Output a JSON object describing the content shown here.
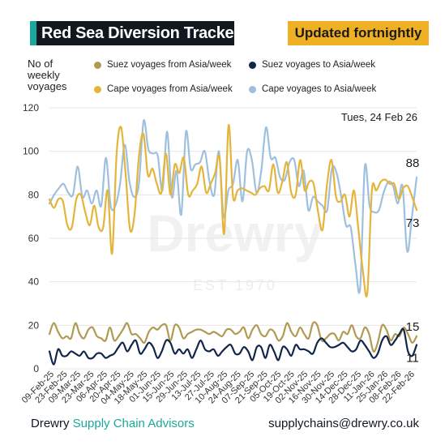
{
  "header": {
    "title": "Red Sea Diversion Tracker",
    "updated": "Updated fortnightly"
  },
  "date_label": "Tues, 24 Feb 26",
  "watermark": {
    "brand": "Drewry",
    "est": "EST 1970"
  },
  "footer": {
    "company": "Drewry",
    "division": "Supply Chain Advisors",
    "email": "supplychains@drewry.co.uk"
  },
  "colors": {
    "suez_from_asia": "#b09a52",
    "suez_to_asia": "#12254a",
    "cape_from_asia": "#e5b43a",
    "cape_to_asia": "#9ec0de",
    "title_bg": "#111820",
    "accent": "#1aa89c",
    "updated_bg": "#f0b024"
  },
  "chart_data": {
    "type": "line",
    "ylabel": "No of weekly voyages",
    "ylim": [
      0,
      120
    ],
    "yticks": [
      0,
      20,
      40,
      60,
      80,
      100,
      120
    ],
    "x_tick_labels": [
      "09-Feb-25",
      "23-Feb-25",
      "09-Mar-25",
      "23-Mar-25",
      "06-Apr-25",
      "20-Apr-25",
      "04-May-25",
      "18-May-25",
      "01-Jun-25",
      "15-Jun-25",
      "29-Jun-25",
      "13-Jul-25",
      "27-Jul-25",
      "10-Aug-25",
      "24-Aug-25",
      "07-Sep-25",
      "21-Sep-25",
      "05-Oct-25",
      "19-Oct-25",
      "02-Nov-25",
      "16-Nov-25",
      "30-Nov-25",
      "14-Dec-25",
      "28-Dec-25",
      "11-Jan-26",
      "25-Jan-26",
      "08-Feb-26",
      "22-Feb-26"
    ],
    "end_labels": {
      "cape_to_asia": "88",
      "cape_from_asia": "73",
      "suez_from_asia": "15",
      "suez_to_asia": "11"
    },
    "series": [
      {
        "name": "Suez voyages from Asia/week",
        "key": "suez_from_asia",
        "values": [
          16,
          21,
          17,
          14,
          15,
          14,
          21,
          16,
          14,
          18,
          19,
          15,
          14,
          13,
          19,
          13,
          15,
          18,
          21,
          16,
          16,
          14,
          12,
          17,
          19,
          18,
          20,
          20,
          13,
          20,
          19,
          14,
          16,
          17,
          18,
          18,
          17,
          16,
          17,
          16,
          15,
          18,
          18,
          16,
          17,
          19,
          14,
          18,
          20,
          16,
          15,
          18,
          17,
          13,
          15,
          21,
          17,
          15,
          19,
          16,
          14,
          21,
          20,
          13,
          14,
          16,
          16,
          13,
          17,
          16,
          20,
          15,
          14,
          19,
          16,
          8,
          12,
          20,
          18,
          13,
          16,
          15,
          19,
          16,
          12,
          15
        ]
      },
      {
        "name": "Suez voyages to Asia/week",
        "key": "suez_to_asia",
        "values": [
          8,
          2,
          9,
          6,
          6,
          8,
          7,
          6,
          8,
          5,
          5,
          7,
          7,
          5,
          6,
          7,
          10,
          12,
          8,
          11,
          13,
          7,
          9,
          12,
          10,
          5,
          8,
          13,
          12,
          7,
          9,
          7,
          9,
          5,
          9,
          13,
          9,
          8,
          9,
          6,
          8,
          10,
          11,
          7,
          7,
          10,
          8,
          4,
          10,
          10,
          5,
          11,
          8,
          4,
          10,
          9,
          6,
          11,
          9,
          9,
          8,
          7,
          12,
          14,
          12,
          10,
          10,
          11,
          12,
          10,
          8,
          9,
          13,
          11,
          8,
          5,
          7,
          13,
          15,
          11,
          13,
          16,
          18,
          8,
          6,
          11
        ]
      },
      {
        "name": "Cape voyages from Asia/week",
        "key": "cape_from_asia",
        "values": [
          78,
          74,
          78,
          77,
          66,
          65,
          78,
          80,
          72,
          66,
          75,
          65,
          65,
          82,
          53,
          99,
          111,
          90,
          64,
          71,
          98,
          108,
          89,
          92,
          85,
          81,
          99,
          80,
          94,
          90,
          97,
          80,
          82,
          85,
          93,
          81,
          85,
          90,
          97,
          62,
          112,
          79,
          82,
          83,
          82,
          81,
          80,
          83,
          84,
          82,
          94,
          81,
          86,
          95,
          81,
          80,
          96,
          82,
          86,
          85,
          72,
          64,
          85,
          96,
          79,
          77,
          80,
          70,
          82,
          64,
          45,
          35,
          82,
          82,
          86,
          87,
          85,
          85,
          78,
          83,
          84,
          79,
          73
        ]
      },
      {
        "name": "Cape voyages to Asia/week",
        "key": "cape_to_asia",
        "values": [
          76,
          80,
          83,
          85,
          81,
          80,
          93,
          79,
          82,
          76,
          82,
          75,
          97,
          75,
          75,
          85,
          103,
          86,
          79,
          85,
          114,
          101,
          99,
          98,
          82,
          109,
          79,
          91,
          71,
          109,
          92,
          94,
          95,
          100,
          86,
          80,
          100,
          70,
          82,
          85,
          96,
          77,
          100,
          96,
          81,
          91,
          111,
          97,
          97,
          88,
          87,
          95,
          96,
          84,
          91,
          73,
          79,
          77,
          75,
          73,
          92,
          90,
          79,
          66,
          65,
          48,
          37,
          93,
          75,
          72,
          73,
          81,
          86,
          84,
          76,
          84,
          54,
          70,
          88
        ]
      }
    ]
  }
}
